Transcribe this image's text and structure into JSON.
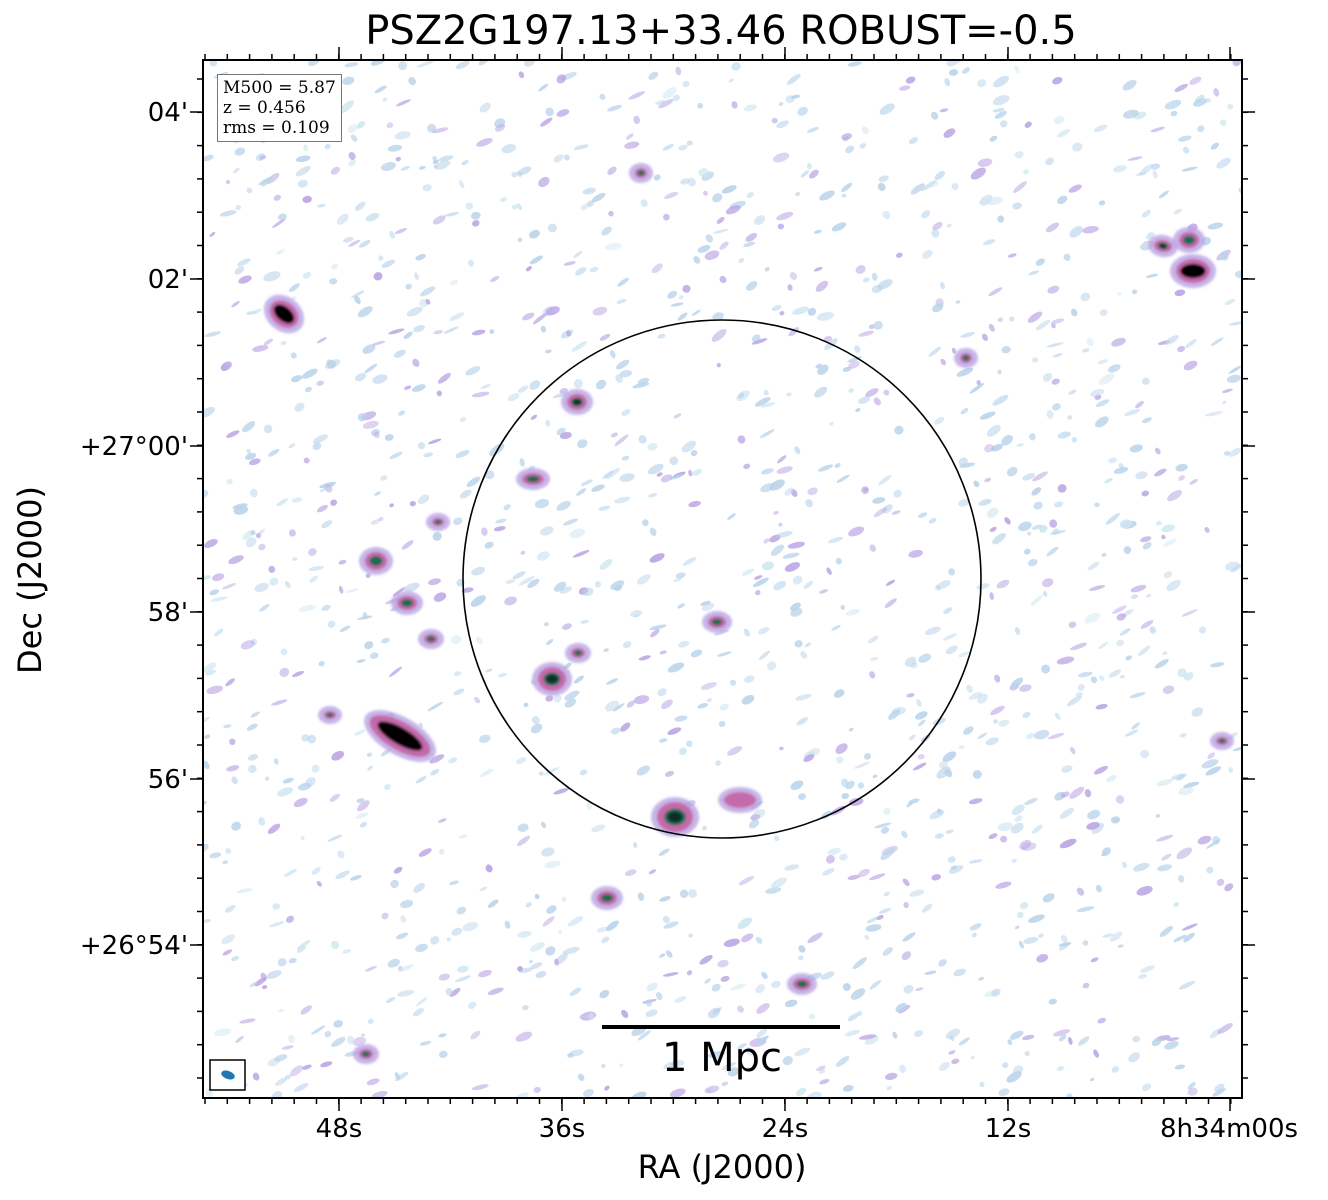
{
  "chart_data": {
    "type": "heatmap",
    "title": "PSZ2G197.13+33.46 ROBUST=-0.5",
    "xlabel": "RA (J2000)",
    "ylabel": "Dec (J2000)",
    "x_ticks": [
      "48s",
      "36s",
      "24s",
      "12s",
      "8h34m00s"
    ],
    "y_ticks": [
      "04'",
      "02'",
      "+27°00'",
      "58'",
      "56'",
      "+26°54'"
    ],
    "info": {
      "m500": "M500 = 5.87",
      "z": "z = 0.456",
      "rms": "rms = 0.109"
    },
    "scale_bar_label": "1 Mpc",
    "colors": {
      "noise_light": "#b9d3ea",
      "noise_purple": "#b9a3e3",
      "source_pink": "#c46aa8",
      "source_green": "#1c6a52",
      "source_core": "#000000",
      "beam": "#1f77b4"
    }
  }
}
